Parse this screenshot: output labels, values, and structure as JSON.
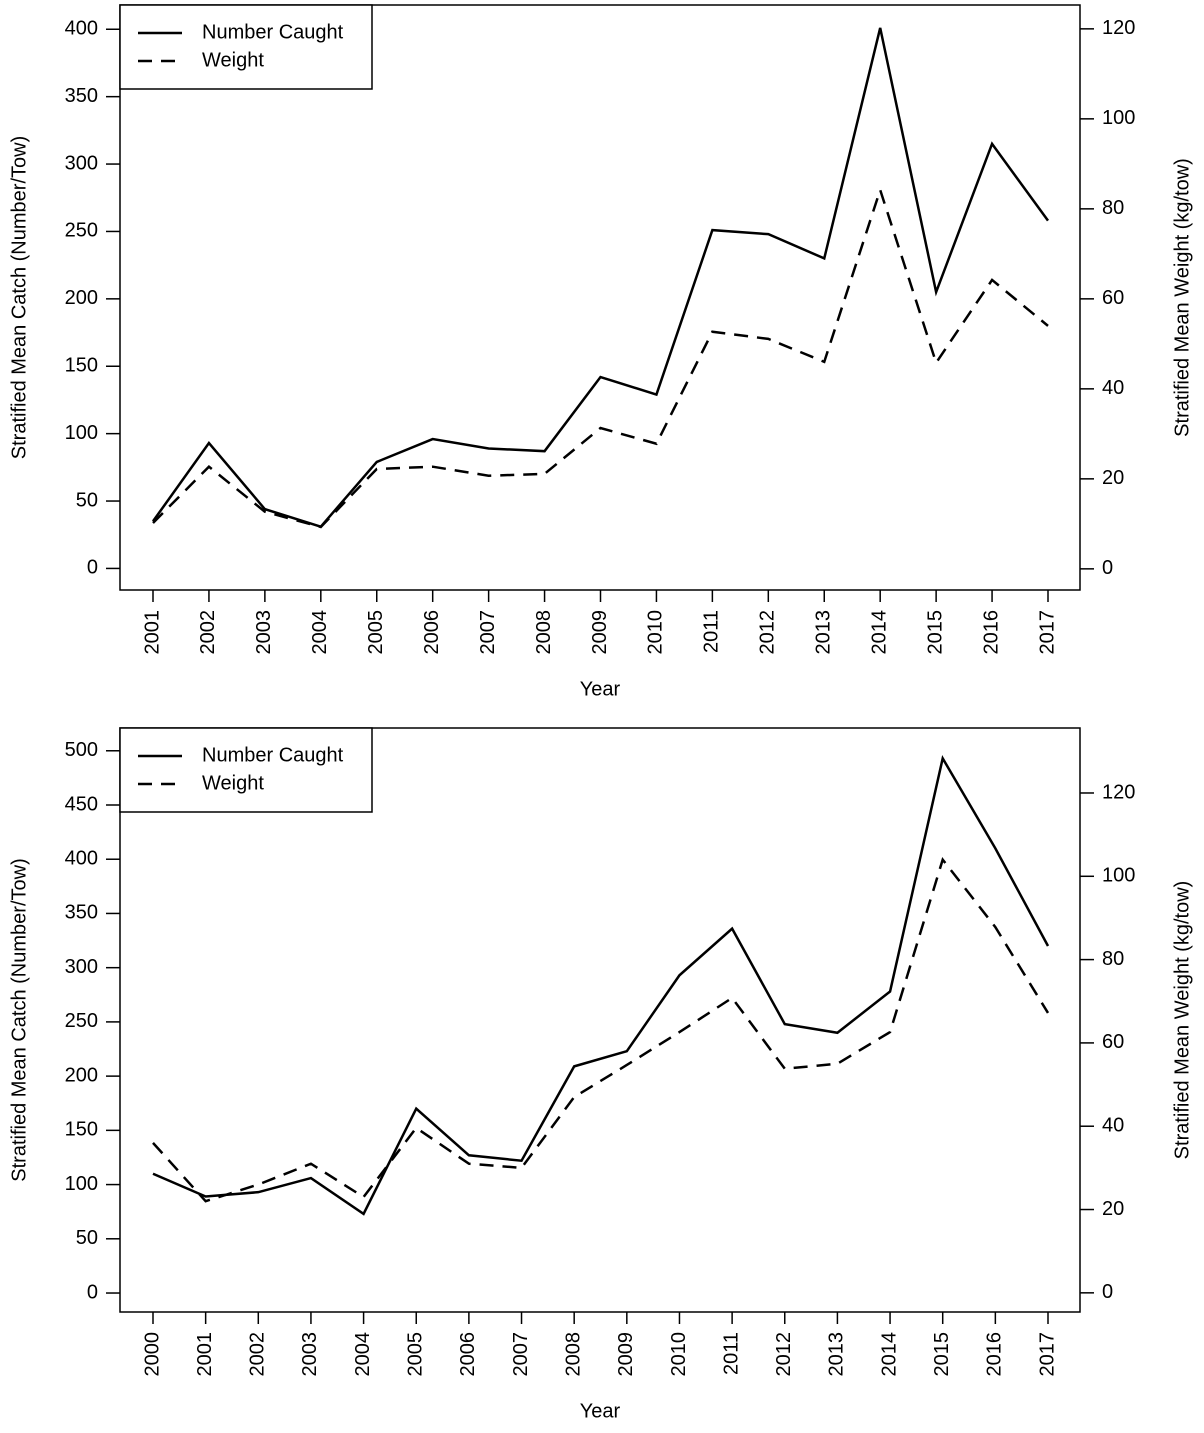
{
  "chart_data": [
    {
      "type": "line",
      "xlabel": "Year",
      "ylabel": "Stratified Mean Catch (Number/Tow)",
      "y2label": "Stratified Mean Weight (kg/tow)",
      "categories": [
        "2001",
        "2002",
        "2003",
        "2004",
        "2005",
        "2006",
        "2007",
        "2008",
        "2009",
        "2010",
        "2011",
        "2012",
        "2013",
        "2014",
        "2015",
        "2016",
        "2017"
      ],
      "series": [
        {
          "name": "Number Caught",
          "color": "#000000",
          "dash": "solid",
          "values": [
            35,
            93,
            44,
            31,
            79,
            96,
            89,
            87,
            142,
            129,
            251,
            248,
            230,
            401,
            205,
            315,
            258
          ]
        },
        {
          "name": "Weight",
          "color": "#000000",
          "dash": "dashed",
          "axis": "y2",
          "values": [
            10.2,
            22.7,
            12.7,
            9.3,
            22.2,
            22.7,
            20.7,
            21.1,
            31.3,
            27.8,
            52.7,
            51.1,
            46,
            84.2,
            45.8,
            64.2,
            54
          ]
        }
      ],
      "ylim": [
        -16,
        418
      ],
      "yticks": [
        0,
        50,
        100,
        150,
        200,
        250,
        300,
        350,
        400
      ],
      "y2lim": [
        -4.7,
        125.3
      ],
      "y2ticks": [
        0,
        20,
        40,
        60,
        80,
        100,
        120
      ],
      "legend": "top-left"
    },
    {
      "type": "line",
      "xlabel": "Year",
      "ylabel": "Stratified Mean Catch (Number/Tow)",
      "y2label": "Stratified Mean Weight (kg/tow)",
      "categories": [
        "2000",
        "2001",
        "2002",
        "2003",
        "2004",
        "2005",
        "2006",
        "2007",
        "2008",
        "2009",
        "2010",
        "2011",
        "2012",
        "2013",
        "2014",
        "2015",
        "2016",
        "2017"
      ],
      "series": [
        {
          "name": "Number Caught",
          "color": "#000000",
          "dash": "solid",
          "values": [
            110,
            89,
            93,
            106,
            73,
            170,
            127,
            122,
            209,
            223,
            293,
            336,
            248,
            240,
            278,
            493,
            410,
            320
          ]
        },
        {
          "name": "Weight",
          "color": "#000000",
          "dash": "dashed",
          "axis": "y2",
          "values": [
            36,
            22,
            26,
            31,
            23,
            39.6,
            31,
            30,
            47,
            54.7,
            62.6,
            70.8,
            53.8,
            55,
            62.6,
            104,
            87.8,
            67.2
          ]
        }
      ],
      "ylim": [
        -17.5,
        521
      ],
      "yticks": [
        0,
        50,
        100,
        150,
        200,
        250,
        300,
        350,
        400,
        450,
        500
      ],
      "y2lim": [
        -4.6,
        135.6
      ],
      "y2ticks": [
        0,
        20,
        40,
        60,
        80,
        100,
        120
      ],
      "legend": "top-left"
    }
  ]
}
